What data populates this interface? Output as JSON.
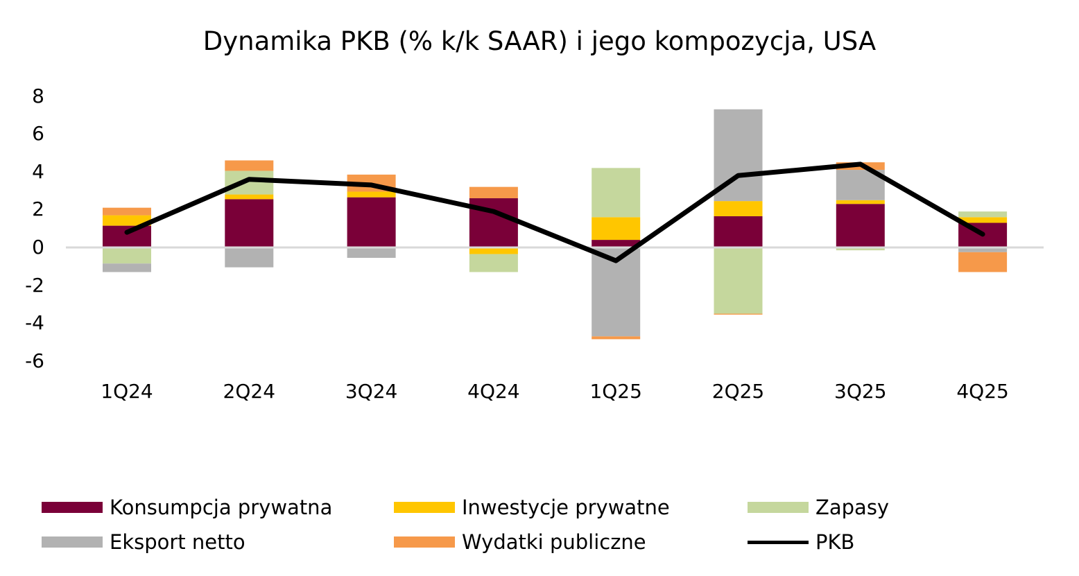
{
  "title": "Dynamika PKB (% k/k SAAR) i jego kompozycja, USA",
  "y_ticks": [
    "8",
    "6",
    "4",
    "2",
    "0",
    "-2",
    "-4",
    "-6"
  ],
  "x_ticks": [
    "1Q24",
    "2Q24",
    "3Q24",
    "4Q24",
    "1Q25",
    "2Q25",
    "3Q25",
    "4Q25"
  ],
  "legend": {
    "konsumpcja": "Konsumpcja prywatna",
    "inwestycje": "Inwestycje prywatne",
    "zapasy": "Zapasy",
    "eksport": "Eksport netto",
    "wydatki": "Wydatki publiczne",
    "pkb": "PKB"
  },
  "colors": {
    "konsumpcja": "#7a0038",
    "inwestycje": "#ffc600",
    "zapasy": "#c5d79d",
    "eksport": "#b2b2b2",
    "wydatki": "#f6994a",
    "pkb": "#000000",
    "zero_line": "#d9d9d9"
  },
  "chart_data": {
    "type": "bar",
    "stacked": true,
    "title": "Dynamika PKB (% k/k SAAR) i jego kompozycja, USA",
    "xlabel": "",
    "ylabel": "",
    "ylim": [
      -6,
      8
    ],
    "grid": false,
    "legend_position": "bottom",
    "categories": [
      "1Q24",
      "2Q24",
      "3Q24",
      "4Q24",
      "1Q25",
      "2Q25",
      "3Q25",
      "4Q25"
    ],
    "series": [
      {
        "name": "Konsumpcja prywatna",
        "type": "bar",
        "values": [
          1.15,
          2.55,
          2.65,
          2.6,
          0.4,
          1.65,
          2.3,
          1.3
        ]
      },
      {
        "name": "Inwestycje prywatne",
        "type": "bar",
        "values": [
          0.55,
          0.25,
          0.3,
          -0.35,
          1.2,
          0.8,
          0.2,
          0.3
        ]
      },
      {
        "name": "Zapasy",
        "type": "bar",
        "values": [
          -0.85,
          1.25,
          -0.05,
          -0.95,
          2.6,
          -3.5,
          -0.15,
          0.3
        ]
      },
      {
        "name": "Eksport netto",
        "type": "bar",
        "values": [
          -0.45,
          -1.05,
          -0.5,
          0.0,
          -4.7,
          4.85,
          1.6,
          -0.25
        ]
      },
      {
        "name": "Wydatki publiczne",
        "type": "bar",
        "values": [
          0.4,
          0.55,
          0.9,
          0.6,
          -0.15,
          -0.05,
          0.4,
          -1.05
        ]
      },
      {
        "name": "PKB",
        "type": "line",
        "values": [
          0.8,
          3.6,
          3.3,
          1.9,
          -0.7,
          3.8,
          4.4,
          0.7
        ]
      }
    ]
  }
}
